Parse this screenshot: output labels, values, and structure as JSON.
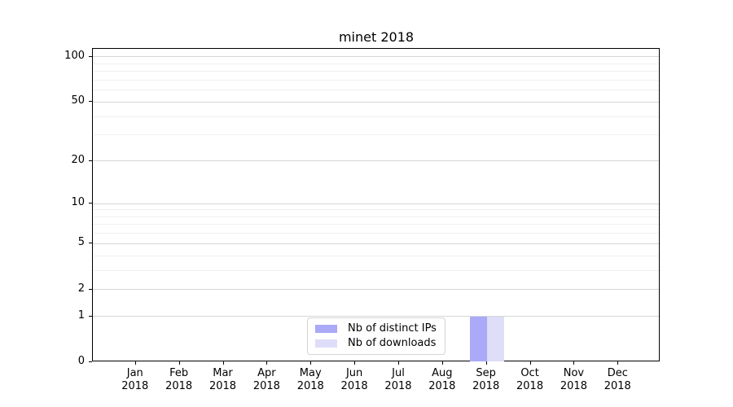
{
  "chart_data": {
    "type": "bar",
    "title": "minet 2018",
    "xlabel": "",
    "ylabel": "",
    "yscale": "log-like: position proportional to log10(1+v)",
    "ylim": [
      0,
      113
    ],
    "grid": true,
    "legend_position": "lower center",
    "y_major_ticks": [
      100,
      50,
      20,
      10,
      5,
      2,
      1,
      0
    ],
    "y_minor_ticks": [
      3,
      4,
      6,
      7,
      8,
      9,
      30,
      40,
      60,
      70,
      80,
      90
    ],
    "categories": [
      {
        "month": "Jan",
        "year": "2018"
      },
      {
        "month": "Feb",
        "year": "2018"
      },
      {
        "month": "Mar",
        "year": "2018"
      },
      {
        "month": "Apr",
        "year": "2018"
      },
      {
        "month": "May",
        "year": "2018"
      },
      {
        "month": "Jun",
        "year": "2018"
      },
      {
        "month": "Jul",
        "year": "2018"
      },
      {
        "month": "Aug",
        "year": "2018"
      },
      {
        "month": "Sep",
        "year": "2018"
      },
      {
        "month": "Oct",
        "year": "2018"
      },
      {
        "month": "Nov",
        "year": "2018"
      },
      {
        "month": "Dec",
        "year": "2018"
      }
    ],
    "series": [
      {
        "name": "Nb of distinct IPs",
        "color": "#aaaaf8",
        "values": [
          0,
          0,
          0,
          0,
          0,
          0,
          0,
          0,
          1,
          0,
          0,
          0
        ]
      },
      {
        "name": "Nb of downloads",
        "color": "#dedef8",
        "values": [
          0,
          0,
          0,
          0,
          0,
          0,
          0,
          0,
          1,
          0,
          0,
          0
        ]
      }
    ]
  },
  "colors": {
    "grid_major": "#d6d6d6",
    "grid_minor": "#f0f0f0",
    "spine": "#000000",
    "text": "#000000"
  }
}
